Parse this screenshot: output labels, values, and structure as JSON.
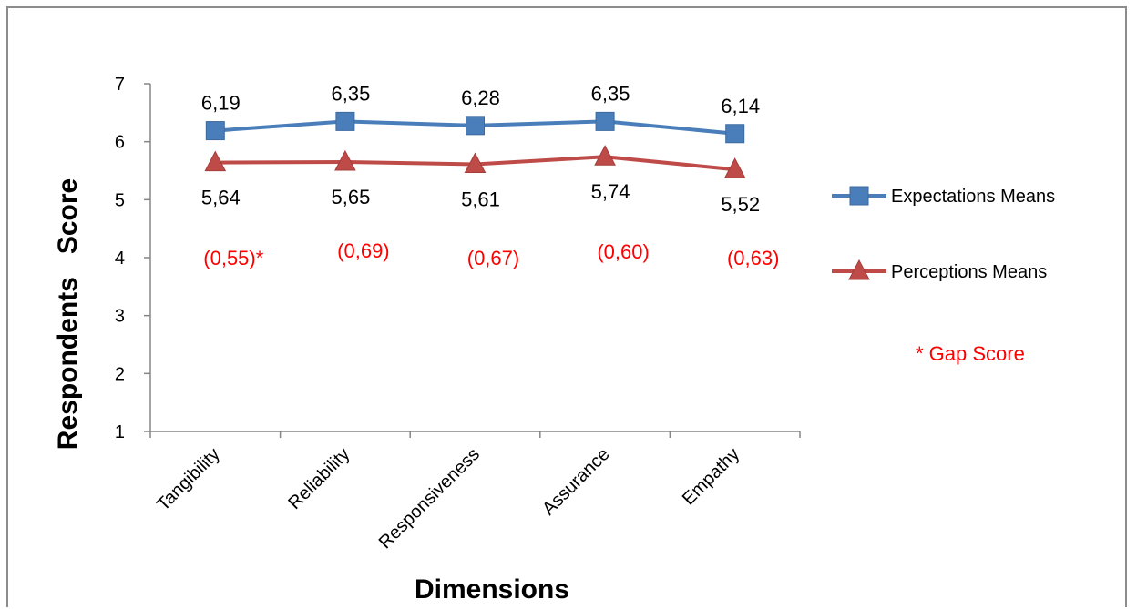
{
  "chart_data": {
    "type": "line",
    "xlabel": "Dimensions",
    "ylabel": "Respondents   Score",
    "ylim": [
      1,
      7
    ],
    "yticks": [
      "1",
      "2",
      "3",
      "4",
      "5",
      "6",
      "7"
    ],
    "grid": false,
    "legend_position": "right",
    "categories": [
      "Tangibility",
      "Reliability",
      "Responsiveness",
      "Assurance",
      "Empathy"
    ],
    "series": [
      {
        "name": "Expectations Means",
        "values": [
          6.19,
          6.35,
          6.28,
          6.35,
          6.14
        ],
        "labels": [
          "6,19",
          "6,35",
          "6,28",
          "6,35",
          "6,14"
        ],
        "color": "#4a7ebb",
        "marker": "square"
      },
      {
        "name": "Perceptions Means",
        "values": [
          5.64,
          5.65,
          5.61,
          5.74,
          5.52
        ],
        "labels": [
          "5,64",
          "5,65",
          "5,61",
          "5,74",
          "5,52"
        ],
        "color": "#be4b48",
        "marker": "triangle"
      }
    ],
    "gap_labels": [
      "(0,55)*",
      "(0,69)",
      "(0,67)",
      "(0,60)",
      "(0,63)"
    ],
    "gap_values": [
      0.55,
      0.69,
      0.67,
      0.6,
      0.63
    ],
    "gap_color": "#ff0000",
    "annotation": "* Gap Score"
  }
}
